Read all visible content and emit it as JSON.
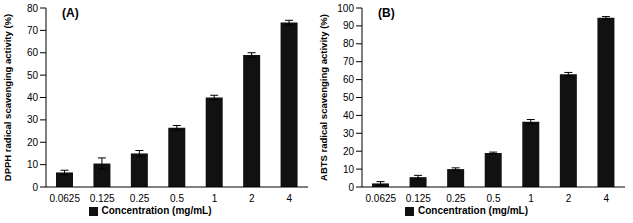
{
  "chart_data": [
    {
      "type": "bar",
      "title": "(A)",
      "y_label": "DPPH radical scavenging activity (%)",
      "categories": [
        "0.0625",
        "0.125",
        "0.25",
        "0.5",
        "1",
        "2",
        "4"
      ],
      "series": [
        {
          "name": "Concentration (mg/mL)",
          "color": "#111111",
          "values": [
            6.5,
            10.5,
            15,
            26.5,
            40,
            59,
            73.5
          ],
          "errors": [
            1,
            2.5,
            1.3,
            1,
            1,
            1,
            1
          ]
        }
      ],
      "ylim": [
        0,
        80
      ],
      "yticks": [
        0,
        10,
        20,
        30,
        40,
        50,
        60,
        70,
        80
      ],
      "grid": false,
      "legend": "bottom"
    },
    {
      "type": "bar",
      "title": "(B)",
      "y_label": "ABTS radical scavenging activity (%)",
      "categories": [
        "0.0625",
        "0.125",
        "0.25",
        "0.5",
        "1",
        "2",
        "4"
      ],
      "series": [
        {
          "name": "Concentration (mg/mL)",
          "color": "#111111",
          "values": [
            2,
            5.5,
            10,
            19,
            36.5,
            63,
            94.5
          ],
          "errors": [
            1,
            1,
            0.7,
            0.5,
            1.2,
            1,
            0.7
          ]
        }
      ],
      "ylim": [
        0,
        100
      ],
      "yticks": [
        0,
        10,
        20,
        30,
        40,
        50,
        60,
        70,
        80,
        90,
        100
      ],
      "grid": false,
      "legend": "bottom"
    }
  ]
}
